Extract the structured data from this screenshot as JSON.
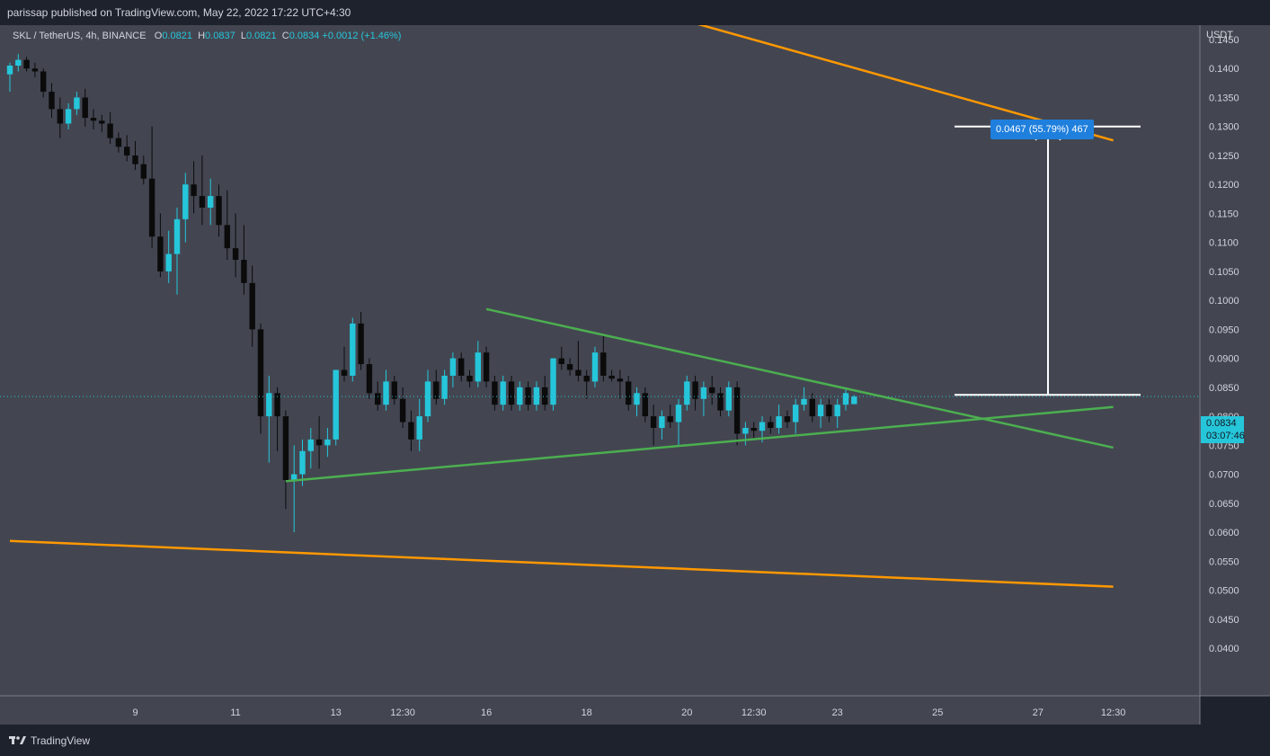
{
  "header": {
    "published_by": "parissap published on TradingView.com, May 22, 2022 17:22 UTC+4:30"
  },
  "legend": {
    "symbol": "SKL / TetherUS, 4h, BINANCE",
    "open_label": "O",
    "open": "0.0821",
    "high_label": "H",
    "high": "0.0837",
    "low_label": "L",
    "low": "0.0821",
    "close_label": "C",
    "close": "0.0834",
    "change": "+0.0012 (+1.46%)"
  },
  "price_axis": {
    "currency": "USDT"
  },
  "last_price": {
    "value": "0.0834",
    "countdown": "03:07:46"
  },
  "measurement": {
    "label": "0.0467 (55.79%) 467"
  },
  "footer": {
    "brand": "TradingView"
  },
  "colors": {
    "background": "#434651",
    "up_candle": "#26c6da",
    "down_candle": "#0b0b0b",
    "triangle_line": "#4caf50",
    "channel_line": "#ff9800",
    "measure_line": "#ffffff"
  },
  "chart_data": {
    "type": "candlestick",
    "ylim": [
      0.035,
      0.158
    ],
    "yticks": [
      "0.1450",
      "0.1400",
      "0.1350",
      "0.1300",
      "0.1250",
      "0.1200",
      "0.1150",
      "0.1100",
      "0.1050",
      "0.1000",
      "0.0950",
      "0.0900",
      "0.0850",
      "0.0800",
      "0.0750",
      "0.0700",
      "0.0650",
      "0.0600",
      "0.0550",
      "0.0500",
      "0.0450",
      "0.0400"
    ],
    "xticks": [
      "9",
      "11",
      "13",
      "12:30",
      "16",
      "18",
      "20",
      "12:30",
      "23",
      "25",
      "27",
      "12:30"
    ],
    "xtick_bar_index": [
      15,
      27,
      39,
      47,
      57,
      69,
      81,
      89,
      99,
      111,
      123,
      132
    ],
    "candles": [
      [
        0.139,
        0.141,
        0.136,
        0.1405
      ],
      [
        0.1405,
        0.1425,
        0.1395,
        0.1415
      ],
      [
        0.1415,
        0.142,
        0.1395,
        0.14
      ],
      [
        0.14,
        0.141,
        0.1385,
        0.1395
      ],
      [
        0.1395,
        0.14,
        0.135,
        0.136
      ],
      [
        0.136,
        0.1375,
        0.1315,
        0.133
      ],
      [
        0.133,
        0.135,
        0.128,
        0.1305
      ],
      [
        0.1305,
        0.134,
        0.1295,
        0.133
      ],
      [
        0.133,
        0.136,
        0.132,
        0.135
      ],
      [
        0.135,
        0.1365,
        0.13,
        0.1315
      ],
      [
        0.1315,
        0.133,
        0.1295,
        0.131
      ],
      [
        0.131,
        0.132,
        0.129,
        0.1305
      ],
      [
        0.1305,
        0.1325,
        0.127,
        0.128
      ],
      [
        0.128,
        0.129,
        0.1255,
        0.1265
      ],
      [
        0.1265,
        0.1285,
        0.124,
        0.125
      ],
      [
        0.125,
        0.1275,
        0.1225,
        0.1235
      ],
      [
        0.1235,
        0.125,
        0.12,
        0.121
      ],
      [
        0.121,
        0.13,
        0.109,
        0.111
      ],
      [
        0.111,
        0.115,
        0.104,
        0.105
      ],
      [
        0.105,
        0.112,
        0.103,
        0.108
      ],
      [
        0.108,
        0.116,
        0.101,
        0.114
      ],
      [
        0.114,
        0.122,
        0.11,
        0.12
      ],
      [
        0.12,
        0.124,
        0.115,
        0.118
      ],
      [
        0.118,
        0.125,
        0.113,
        0.116
      ],
      [
        0.116,
        0.121,
        0.113,
        0.118
      ],
      [
        0.118,
        0.12,
        0.111,
        0.113
      ],
      [
        0.113,
        0.119,
        0.107,
        0.109
      ],
      [
        0.109,
        0.115,
        0.104,
        0.107
      ],
      [
        0.107,
        0.113,
        0.101,
        0.103
      ],
      [
        0.103,
        0.106,
        0.092,
        0.095
      ],
      [
        0.095,
        0.096,
        0.077,
        0.08
      ],
      [
        0.08,
        0.087,
        0.072,
        0.084
      ],
      [
        0.084,
        0.085,
        0.074,
        0.08
      ],
      [
        0.08,
        0.081,
        0.064,
        0.069
      ],
      [
        0.069,
        0.075,
        0.06,
        0.07
      ],
      [
        0.07,
        0.076,
        0.068,
        0.074
      ],
      [
        0.074,
        0.078,
        0.071,
        0.076
      ],
      [
        0.076,
        0.08,
        0.071,
        0.075
      ],
      [
        0.075,
        0.078,
        0.073,
        0.076
      ],
      [
        0.076,
        0.088,
        0.075,
        0.088
      ],
      [
        0.088,
        0.092,
        0.086,
        0.087
      ],
      [
        0.087,
        0.097,
        0.086,
        0.096
      ],
      [
        0.096,
        0.098,
        0.088,
        0.089
      ],
      [
        0.089,
        0.09,
        0.083,
        0.084
      ],
      [
        0.084,
        0.086,
        0.081,
        0.082
      ],
      [
        0.082,
        0.088,
        0.081,
        0.086
      ],
      [
        0.086,
        0.087,
        0.082,
        0.083
      ],
      [
        0.083,
        0.085,
        0.078,
        0.079
      ],
      [
        0.079,
        0.081,
        0.074,
        0.076
      ],
      [
        0.076,
        0.083,
        0.074,
        0.08
      ],
      [
        0.08,
        0.088,
        0.079,
        0.086
      ],
      [
        0.086,
        0.088,
        0.082,
        0.083
      ],
      [
        0.083,
        0.088,
        0.082,
        0.087
      ],
      [
        0.087,
        0.091,
        0.085,
        0.09
      ],
      [
        0.09,
        0.091,
        0.086,
        0.087
      ],
      [
        0.087,
        0.088,
        0.085,
        0.086
      ],
      [
        0.086,
        0.093,
        0.085,
        0.091
      ],
      [
        0.091,
        0.092,
        0.085,
        0.086
      ],
      [
        0.086,
        0.087,
        0.081,
        0.082
      ],
      [
        0.082,
        0.087,
        0.081,
        0.086
      ],
      [
        0.086,
        0.087,
        0.081,
        0.082
      ],
      [
        0.082,
        0.086,
        0.081,
        0.085
      ],
      [
        0.085,
        0.086,
        0.081,
        0.082
      ],
      [
        0.082,
        0.086,
        0.081,
        0.085
      ],
      [
        0.085,
        0.087,
        0.081,
        0.082
      ],
      [
        0.082,
        0.09,
        0.081,
        0.09
      ],
      [
        0.09,
        0.092,
        0.088,
        0.089
      ],
      [
        0.089,
        0.09,
        0.087,
        0.088
      ],
      [
        0.088,
        0.093,
        0.086,
        0.087
      ],
      [
        0.087,
        0.088,
        0.083,
        0.086
      ],
      [
        0.086,
        0.092,
        0.085,
        0.091
      ],
      [
        0.091,
        0.094,
        0.086,
        0.087
      ],
      [
        0.087,
        0.088,
        0.086,
        0.0865
      ],
      [
        0.0865,
        0.088,
        0.083,
        0.086
      ],
      [
        0.086,
        0.087,
        0.081,
        0.082
      ],
      [
        0.082,
        0.085,
        0.08,
        0.084
      ],
      [
        0.084,
        0.085,
        0.079,
        0.08
      ],
      [
        0.08,
        0.082,
        0.075,
        0.078
      ],
      [
        0.078,
        0.081,
        0.076,
        0.08
      ],
      [
        0.08,
        0.082,
        0.078,
        0.079
      ],
      [
        0.079,
        0.083,
        0.075,
        0.082
      ],
      [
        0.082,
        0.087,
        0.081,
        0.086
      ],
      [
        0.086,
        0.087,
        0.081,
        0.083
      ],
      [
        0.083,
        0.086,
        0.08,
        0.085
      ],
      [
        0.085,
        0.087,
        0.082,
        0.084
      ],
      [
        0.084,
        0.085,
        0.08,
        0.081
      ],
      [
        0.081,
        0.086,
        0.08,
        0.085
      ],
      [
        0.085,
        0.086,
        0.075,
        0.077
      ],
      [
        0.077,
        0.079,
        0.075,
        0.078
      ],
      [
        0.078,
        0.079,
        0.076,
        0.0775
      ],
      [
        0.0775,
        0.08,
        0.0755,
        0.079
      ],
      [
        0.079,
        0.08,
        0.077,
        0.078
      ],
      [
        0.078,
        0.082,
        0.077,
        0.08
      ],
      [
        0.08,
        0.081,
        0.078,
        0.079
      ],
      [
        0.079,
        0.083,
        0.077,
        0.082
      ],
      [
        0.082,
        0.085,
        0.081,
        0.083
      ],
      [
        0.083,
        0.084,
        0.079,
        0.08
      ],
      [
        0.08,
        0.083,
        0.078,
        0.082
      ],
      [
        0.082,
        0.083,
        0.079,
        0.08
      ],
      [
        0.08,
        0.083,
        0.078,
        0.082
      ],
      [
        0.082,
        0.085,
        0.081,
        0.084
      ],
      [
        0.0821,
        0.0837,
        0.0821,
        0.0834
      ]
    ],
    "drawings": {
      "triangle_upper": [
        [
          57,
          0.0985
        ],
        [
          132,
          0.0746
        ]
      ],
      "triangle_lower": [
        [
          33,
          0.0688
        ],
        [
          132,
          0.0816
        ]
      ],
      "channel_upper": [
        [
          54,
          0.1591
        ],
        [
          132,
          0.1276
        ]
      ],
      "channel_lower": [
        [
          0,
          0.0585
        ],
        [
          132,
          0.0506
        ]
      ],
      "measure_top": 0.13,
      "measure_bottom": 0.0837
    }
  }
}
